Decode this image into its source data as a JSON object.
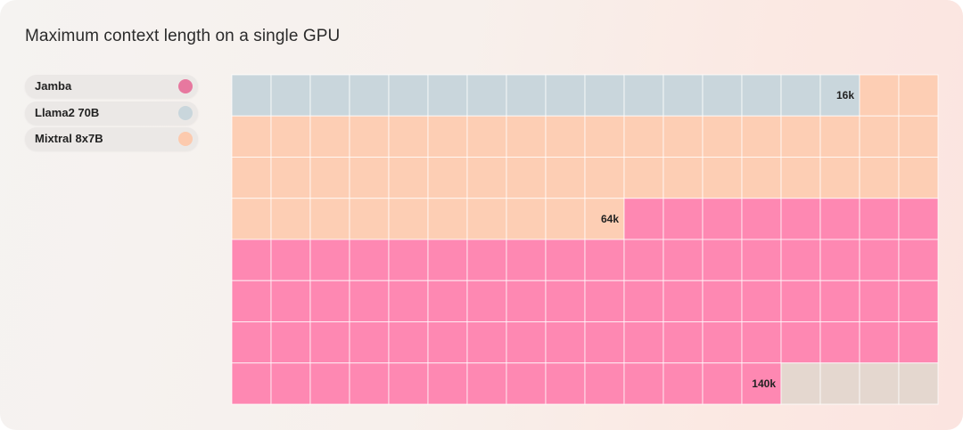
{
  "title": "Maximum context length on a single GPU",
  "legend": [
    {
      "label": "Jamba",
      "color": "#e7789f"
    },
    {
      "label": "Llama2 70B",
      "color": "#c9d6dc"
    },
    {
      "label": "Mixtral 8x7B",
      "color": "#fccaae"
    }
  ],
  "chart_data": {
    "type": "waffle",
    "title": "Maximum context length on a single GPU",
    "grid": {
      "columns": 18,
      "rows": 8
    },
    "series": [
      {
        "name": "Jamba",
        "value_label": "140k",
        "cells": 140,
        "color": "#fe88b2"
      },
      {
        "name": "Llama2 70B",
        "value_label": "16k",
        "cells": 16,
        "color": "#c9d6dc"
      },
      {
        "name": "Mixtral 8x7B",
        "value_label": "64k",
        "cells": 64,
        "color": "#fdceb4"
      }
    ],
    "empty_color": "#e4d7cf"
  }
}
